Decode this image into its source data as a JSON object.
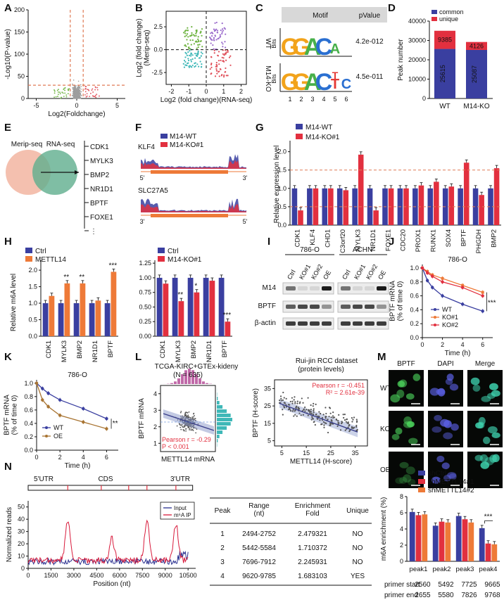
{
  "colors": {
    "blue": "#3a3fa0",
    "red": "#e2303f",
    "orange": "#ee7a38",
    "gray": "#9e9e9e",
    "teal": "#3fb8b8",
    "green": "#6db33f",
    "purple": "#9b6ccc",
    "coral": "#e0505a",
    "dash": "#e07a55",
    "pink": "#f3b9a6",
    "sea": "#5fae8d"
  },
  "panelLetters": [
    "A",
    "B",
    "C",
    "D",
    "E",
    "F",
    "G",
    "H",
    "I",
    "J",
    "K",
    "L",
    "M",
    "N"
  ],
  "A": {
    "xlabel": "Log2(Foldchange)",
    "ylabel": "-Log10(P-value)",
    "xticks": [
      "-5",
      "0",
      "5"
    ],
    "yticks": [
      "0",
      "50",
      "100",
      "150",
      "200"
    ]
  },
  "B": {
    "xlabel": "Log2 (fold change)(RNA-seq)",
    "ylabel": "Log2 (fold change)\n(Merip-seq)",
    "xticks": [
      "-2",
      "-1",
      "0",
      "1",
      "2"
    ],
    "yticks": [
      "-2.5",
      "0.0",
      "2.5"
    ]
  },
  "C": {
    "headers": [
      "Motif",
      "pValue"
    ],
    "rows": [
      {
        "name": "WT",
        "pval": "4.2e-012",
        "seq": [
          "G",
          "G",
          "A",
          "C",
          "A"
        ]
      },
      {
        "name": "M14-KO",
        "pval": "4.5e-011",
        "seq": [
          "G",
          "G",
          "A",
          "C",
          "T",
          "C"
        ]
      }
    ],
    "bits": "Bits",
    "ticks": [
      "1",
      "2",
      "3",
      "4",
      "5",
      "6"
    ]
  },
  "D": {
    "ylabel": "Peak number",
    "legend": [
      "common",
      "unique"
    ],
    "categories": [
      "WT",
      "M14-KO"
    ],
    "yticks": [
      "0",
      "10000",
      "20000",
      "30000",
      "40000"
    ]
  },
  "E": {
    "labels": [
      "Merip-seq",
      "RNA-seq"
    ],
    "genes": [
      "CDK1",
      "MYLK3",
      "BMP2",
      "NR1D1",
      "BPTF",
      "FOXE1",
      "⋮"
    ]
  },
  "F": {
    "legend": [
      "M14-WT",
      "M14-KO#1"
    ],
    "tracks": [
      {
        "gene": "KLF4",
        "left": "5'",
        "right": "3'"
      },
      {
        "gene": "SLC27A5",
        "left": "3'",
        "right": "5'"
      }
    ]
  },
  "G": {
    "ylabel": "Relative expression level",
    "legend": [
      "M14-WT",
      "M14-KO#1"
    ],
    "yticks": [
      "0.0",
      "0.5",
      "1.0",
      "1.5",
      "2.0"
    ]
  },
  "H1": {
    "ylabel": "Relative m6A level",
    "legend": [
      "Ctrl",
      "METTL14"
    ],
    "yticks": [
      "0.0",
      "0.5",
      "1.0",
      "1.5",
      "2.0"
    ],
    "stars": [
      "**",
      "**",
      "***"
    ]
  },
  "H2": {
    "legend": [
      "Ctrl",
      "M14-KO#1"
    ],
    "yticks": [
      "0.00",
      "0.25",
      "0.50",
      "0.75",
      "1.00",
      "1.25"
    ],
    "stars": [
      "**",
      "*",
      "***"
    ]
  },
  "I": {
    "cells": [
      "786-O",
      "ACHN"
    ],
    "lanes": [
      "Ctrl",
      "KO#1",
      "KO#2",
      "OE"
    ],
    "rows": [
      "M14",
      "BPTF",
      "β-actin"
    ]
  },
  "J": {
    "title": "786-O",
    "ylabel": "BPTF mRNA\n(% of time 0)",
    "xlabel": "Time (h)",
    "legend": [
      "WT",
      "KO#1",
      "KO#2"
    ],
    "yticks": [
      "0.0",
      "0.2",
      "0.4",
      "0.6",
      "0.8",
      "1.0"
    ],
    "xticks": [
      "0",
      "2",
      "4",
      "6"
    ],
    "stars": "***"
  },
  "K": {
    "title": "786-O",
    "ylabel": "BPTF mRNA\n(% of time 0)",
    "xlabel": "Time (h)",
    "legend": [
      "WT",
      "OE"
    ],
    "yticks": [
      "0.0",
      "0.2",
      "0.4",
      "0.6",
      "0.8",
      "1.0"
    ],
    "xticks": [
      "0",
      "2",
      "4",
      "6"
    ],
    "stars": "**"
  },
  "L1": {
    "title": "TCGA-KIRC+GTEx-kideny",
    "n": "(N = 635)",
    "ylabel": "BPTF mRNA",
    "xlabel": "METTL14 mRNA",
    "stat1": "Pearson r = -0.29",
    "stat2": "P < 0.001",
    "yticks": [
      "1",
      "2",
      "3",
      "4"
    ]
  },
  "L2": {
    "title": "Rui-jin RCC dataset",
    "subtitle": "(protein levels)",
    "ylabel": "BPTF (H-score)",
    "xlabel": "METTL14 (H-score)",
    "stat1": "Pearson r = -0.451",
    "stat2": "R² = 2.61e-39",
    "xticks": [
      "5",
      "15",
      "25",
      "35"
    ],
    "yticks": [
      "5",
      "15",
      "25",
      "35"
    ]
  },
  "M": {
    "cols": [
      "BPTF",
      "DAPI",
      "Merge"
    ],
    "rows": [
      "WT",
      "KO#1",
      "OE"
    ]
  },
  "N": {
    "ylabel": "Normalized reads",
    "xlabel": "Position (nt)",
    "legend": [
      "Input",
      "m⁶A IP"
    ],
    "xticks": [
      "0",
      "1500",
      "3000",
      "4500",
      "6000",
      "7500",
      "9000",
      "10500"
    ],
    "yticks": [
      "0",
      "10",
      "20",
      "30",
      "40",
      "50"
    ],
    "regions": [
      "5'UTR",
      "CDS",
      "3'UTR"
    ],
    "table": {
      "headers": [
        "Peak",
        "Range\n(nt)",
        "Enrichment\nFold",
        "Unique"
      ],
      "rows": [
        [
          "1",
          "2494-2752",
          "2.479321",
          "NO"
        ],
        [
          "2",
          "5442-5584",
          "1.710372",
          "NO"
        ],
        [
          "3",
          "7696-7912",
          "2.245931",
          "NO"
        ],
        [
          "4",
          "9620-9785",
          "1.683103",
          "YES"
        ]
      ]
    }
  },
  "N2": {
    "ylabel": "m6A enrichment (%)",
    "legend": [
      "shCtrl",
      "shMETTL14#1",
      "shMETTL14#2"
    ],
    "categories": [
      "peak1",
      "peak2",
      "peak3",
      "peak4"
    ],
    "yticks": [
      "0",
      "2",
      "4",
      "6",
      "8"
    ],
    "stars": "***",
    "primer_start_label": "primer start",
    "primer_end_label": "primer end",
    "primer_start": [
      "2560",
      "5492",
      "7725",
      "9665"
    ],
    "primer_end": [
      "2655",
      "5580",
      "7826",
      "9768"
    ]
  },
  "chart_data": [
    {
      "id": "D",
      "type": "bar",
      "categories": [
        "WT",
        "M14-KO"
      ],
      "series": [
        {
          "name": "common",
          "values": [
            25615,
            25087
          ]
        },
        {
          "name": "unique",
          "values": [
            9385,
            4126
          ]
        }
      ],
      "ylabel": "Peak number",
      "ylim": [
        0,
        40000
      ]
    },
    {
      "id": "G",
      "type": "bar",
      "categories": [
        "CDK1",
        "KLF4",
        "CHD1",
        "C3orf20",
        "MYLK3",
        "NR1D1",
        "FOXE1",
        "CDC20",
        "PROX1",
        "RUNX1",
        "SOX4",
        "BPTF",
        "PHGDH",
        "BMP2"
      ],
      "series": [
        {
          "name": "M14-WT",
          "values": [
            1,
            1,
            1,
            1,
            1,
            1,
            1,
            1,
            1,
            1,
            1,
            1,
            1,
            1
          ]
        },
        {
          "name": "M14-KO#1",
          "values": [
            0.4,
            1.0,
            1.0,
            0.95,
            1.92,
            0.4,
            1.0,
            1.0,
            1.08,
            1.18,
            1.05,
            1.7,
            0.82,
            1.55
          ]
        }
      ],
      "ylabel": "Relative expression level",
      "ylim": [
        0,
        2.3
      ]
    },
    {
      "id": "H1",
      "type": "bar",
      "categories": [
        "CDK1",
        "MYLK3",
        "BMP2",
        "NR1D1",
        "BPTF"
      ],
      "series": [
        {
          "name": "Ctrl",
          "values": [
            1,
            1,
            1,
            1,
            1
          ]
        },
        {
          "name": "METTL14",
          "values": [
            1.22,
            1.6,
            1.6,
            1.08,
            1.95
          ]
        }
      ],
      "ylabel": "Relative m6A level",
      "ylim": [
        0,
        2.3
      ]
    },
    {
      "id": "H2",
      "type": "bar",
      "categories": [
        "CDK1",
        "MYLK3",
        "BMP2",
        "NR1D1",
        "BPTF"
      ],
      "series": [
        {
          "name": "Ctrl",
          "values": [
            1,
            1,
            1,
            1,
            1
          ]
        },
        {
          "name": "M14-KO#1",
          "values": [
            0.9,
            0.6,
            0.75,
            0.95,
            0.25
          ]
        }
      ],
      "ylim": [
        0,
        1.3
      ]
    },
    {
      "id": "J",
      "type": "line",
      "x": [
        0,
        0.5,
        1,
        2,
        4,
        6
      ],
      "series": [
        {
          "name": "WT",
          "values": [
            1.0,
            0.82,
            0.72,
            0.6,
            0.48,
            0.38
          ]
        },
        {
          "name": "KO#1",
          "values": [
            1.0,
            0.95,
            0.9,
            0.85,
            0.75,
            0.65
          ]
        },
        {
          "name": "KO#2",
          "values": [
            1.0,
            0.93,
            0.88,
            0.8,
            0.72,
            0.6
          ]
        }
      ],
      "xlabel": "Time (h)",
      "ylim": [
        0,
        1.05
      ],
      "xlim": [
        0,
        7
      ]
    },
    {
      "id": "K",
      "type": "line",
      "x": [
        0,
        0.5,
        1,
        2,
        4,
        6
      ],
      "series": [
        {
          "name": "WT",
          "values": [
            1.0,
            0.92,
            0.85,
            0.75,
            0.62,
            0.47
          ]
        },
        {
          "name": "OE",
          "values": [
            1.0,
            0.75,
            0.65,
            0.52,
            0.42,
            0.32
          ]
        }
      ],
      "xlabel": "Time (h)",
      "ylim": [
        0,
        1.05
      ],
      "xlim": [
        0,
        7
      ]
    },
    {
      "id": "N2",
      "type": "bar",
      "categories": [
        "peak1",
        "peak2",
        "peak3",
        "peak4"
      ],
      "series": [
        {
          "name": "shCtrl",
          "values": [
            6.1,
            4.4,
            5.6,
            4.1
          ]
        },
        {
          "name": "shMETTL14#1",
          "values": [
            5.7,
            4.9,
            5.2,
            2.2
          ]
        },
        {
          "name": "shMETTL14#2",
          "values": [
            5.8,
            4.8,
            4.8,
            2.1
          ]
        }
      ],
      "ylabel": "m6A enrichment (%)",
      "ylim": [
        0,
        8
      ]
    }
  ]
}
